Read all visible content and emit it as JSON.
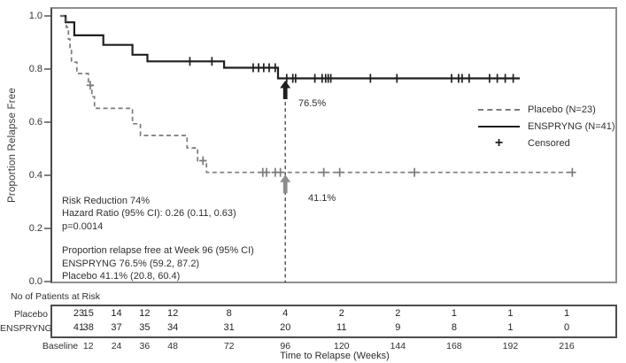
{
  "figure": {
    "background": "#ffffff",
    "frame_color": "#8f8f8f"
  },
  "chart_data": {
    "type": "line",
    "subtype": "kaplan-meier-step",
    "title": "",
    "ylabel": "Proportion Relapse Free",
    "xlabel": "Time to Relapse (Weeks)",
    "ylim": [
      0.0,
      1.0
    ],
    "xlim_weeks": [
      0,
      237
    ],
    "y_ticks": [
      "1.0",
      "0.8",
      "0.6",
      "0.4",
      "0.2",
      "0.0"
    ],
    "grid": false,
    "legend_position": "right-middle",
    "series": [
      {
        "name": "ENSPRYNG (N=41)",
        "line_style": "solid",
        "color": "#1f1f1f",
        "steps_week_value": [
          [
            0,
            1.0
          ],
          [
            2.3,
            0.976
          ],
          [
            6,
            0.927
          ],
          [
            18.4,
            0.891
          ],
          [
            30.8,
            0.854
          ],
          [
            37.2,
            0.829
          ],
          [
            69.9,
            0.805
          ],
          [
            92.9,
            0.765
          ],
          [
            196,
            0.765
          ]
        ],
        "censored_week_value": [
          [
            55.3,
            0.829
          ],
          [
            64.7,
            0.829
          ],
          [
            82.3,
            0.805
          ],
          [
            84.6,
            0.805
          ],
          [
            86.8,
            0.805
          ],
          [
            89.1,
            0.805
          ],
          [
            91.7,
            0.805
          ],
          [
            96.6,
            0.765
          ],
          [
            99.2,
            0.765
          ],
          [
            100.4,
            0.765
          ],
          [
            108.6,
            0.765
          ],
          [
            111.7,
            0.765
          ],
          [
            113.2,
            0.765
          ],
          [
            114.3,
            0.765
          ],
          [
            115.4,
            0.765
          ],
          [
            132.3,
            0.765
          ],
          [
            143.6,
            0.765
          ],
          [
            166.9,
            0.765
          ],
          [
            169.9,
            0.765
          ],
          [
            171.4,
            0.765
          ],
          [
            174.4,
            0.765
          ],
          [
            183.1,
            0.765
          ],
          [
            186.4,
            0.765
          ],
          [
            189.8,
            0.765
          ],
          [
            193.2,
            0.765
          ]
        ]
      },
      {
        "name": "Placebo (N=23)",
        "line_style": "dashed",
        "color": "#7b7b7b",
        "steps_week_value": [
          [
            0,
            1.0
          ],
          [
            2.6,
            0.957
          ],
          [
            3.5,
            0.913
          ],
          [
            4.2,
            0.87
          ],
          [
            4.8,
            0.826
          ],
          [
            7.1,
            0.783
          ],
          [
            12,
            0.739
          ],
          [
            13.5,
            0.696
          ],
          [
            14.6,
            0.652
          ],
          [
            30.8,
            0.594
          ],
          [
            34.2,
            0.55
          ],
          [
            54.1,
            0.503
          ],
          [
            58.6,
            0.455
          ],
          [
            62.4,
            0.411
          ],
          [
            219,
            0.411
          ]
        ],
        "censored_week_value": [
          [
            12.8,
            0.739
          ],
          [
            60.9,
            0.455
          ],
          [
            86.4,
            0.411
          ],
          [
            88,
            0.411
          ],
          [
            91.7,
            0.411
          ],
          [
            93.9,
            0.411
          ],
          [
            112.4,
            0.411
          ],
          [
            119.2,
            0.411
          ],
          [
            151.1,
            0.411
          ],
          [
            218.4,
            0.411
          ]
        ]
      }
    ],
    "reference_line_week": 96,
    "callouts": [
      {
        "text": "76.5%",
        "series": "ENSPRYNG",
        "week": 96,
        "value": 0.765,
        "arrow_color": "#1f1f1f"
      },
      {
        "text": "41.1%",
        "series": "Placebo",
        "week": 96,
        "value": 0.411,
        "arrow_color": "#8d8d8d"
      }
    ],
    "stats_block": {
      "lines": [
        "Risk Reduction 74%",
        "Hazard Ratio (95% CI): 0.26 (0.11, 0.63)",
        "p=0.0014"
      ],
      "week96_lines": [
        "Proportion relapse free at Week 96 (95% CI)",
        "ENSPRYNG 76.5% (59.2, 87.2)",
        "Placebo 41.1% (20.8, 60.4)"
      ]
    }
  },
  "legend": {
    "items": [
      {
        "label": "Placebo (N=23)",
        "marker": "dashed-line",
        "color": "#7b7b7b"
      },
      {
        "label": "ENSPRYNG (N=41)",
        "marker": "solid-line",
        "color": "#1f1f1f"
      },
      {
        "label": "Censored",
        "marker": "plus",
        "color": "#1f1f1f"
      }
    ]
  },
  "risk_table": {
    "title": "No of Patients at Risk",
    "columns": [
      "Baseline",
      "12",
      "24",
      "36",
      "48",
      "72",
      "96",
      "120",
      "144",
      "168",
      "192",
      "216"
    ],
    "column_weeks": [
      0,
      12,
      24,
      36,
      48,
      72,
      96,
      120,
      144,
      168,
      192,
      216
    ],
    "rows": [
      {
        "label": "Placebo",
        "values": [
          "23",
          "15",
          "14",
          "12",
          "12",
          "8",
          "4",
          "2",
          "2",
          "1",
          "1",
          "1"
        ]
      },
      {
        "label": "ENSPRYNG",
        "values": [
          "41",
          "38",
          "37",
          "35",
          "34",
          "31",
          "20",
          "11",
          "9",
          "8",
          "1",
          "0"
        ]
      }
    ],
    "xlabel": "Time to Relapse (Weeks)"
  }
}
